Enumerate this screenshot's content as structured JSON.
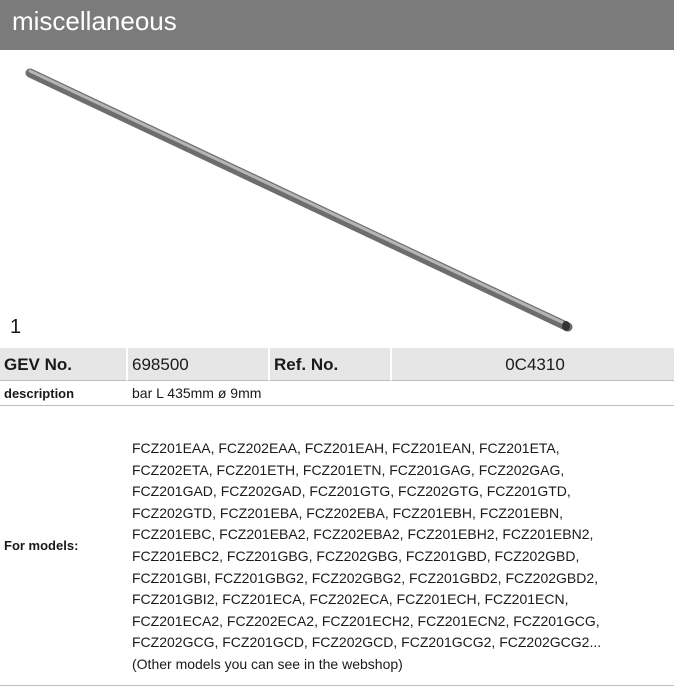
{
  "header": {
    "title": "miscellaneous"
  },
  "figure_label": "1",
  "table": {
    "rows": [
      [
        "GEV No.",
        "698500",
        "Ref. No.",
        "0C4310"
      ],
      [
        "description",
        "bar  L 435mm ø 9mm"
      ],
      [
        "For models:",
        [
          "FCZ201EAA, FCZ202EAA, FCZ201EAH, FCZ201EAN, FCZ201ETA,",
          "FCZ202ETA, FCZ201ETH, FCZ201ETN, FCZ201GAG, FCZ202GAG,",
          "FCZ201GAD, FCZ202GAD, FCZ201GTG, FCZ202GTG, FCZ201GTD,",
          "FCZ202GTD, FCZ201EBA, FCZ202EBA, FCZ201EBH, FCZ201EBN,",
          "FCZ201EBC, FCZ201EBA2, FCZ202EBA2, FCZ201EBH2, FCZ201EBN2,",
          "FCZ201EBC2, FCZ201GBG, FCZ202GBG, FCZ201GBD, FCZ202GBD,",
          "FCZ201GBI, FCZ201GBG2, FCZ202GBG2, FCZ201GBD2, FCZ202GBD2,",
          "FCZ201GBI2, FCZ201ECA, FCZ202ECA, FCZ201ECH, FCZ201ECN,",
          "FCZ201ECA2, FCZ202ECA2, FCZ201ECH2, FCZ201ECN2, FCZ201GCG,",
          "FCZ202GCG, FCZ201GCD, FCZ202GCD, FCZ201GCG2, FCZ202GCG2...",
          "(Other models you can see in the webshop)"
        ]
      ]
    ]
  }
}
